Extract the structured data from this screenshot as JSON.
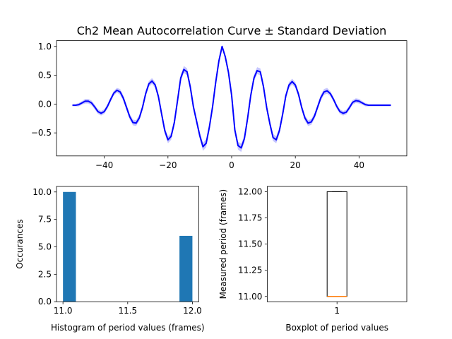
{
  "chart_data": [
    {
      "type": "line",
      "title": "Ch2 Mean Autocorrelation Curve ± Standard Deviation",
      "xlabel": "",
      "ylabel": "",
      "xlim": [
        -55,
        55
      ],
      "ylim": [
        -0.9,
        1.1
      ],
      "xticks": [
        -40,
        -20,
        0,
        20,
        40
      ],
      "xtick_labels": [
        "−40",
        "−20",
        "0",
        "20",
        "40"
      ],
      "yticks": [
        -0.5,
        0.0,
        0.5,
        1.0
      ],
      "ytick_labels": [
        "−0.5",
        "0.0",
        "0.5",
        "1.0"
      ],
      "grid": false,
      "line_color": "#0000ff",
      "band_color": "#8080ff",
      "series": [
        {
          "x": [
            -50,
            -49,
            -48,
            -47,
            -46,
            -45,
            -44,
            -43,
            -42,
            -41,
            -40,
            -39,
            -38,
            -37,
            -36,
            -35,
            -34,
            -33,
            -32,
            -31,
            -30,
            -29,
            -28,
            -27,
            -26,
            -25,
            -24,
            -23,
            -22,
            -21,
            -20,
            -19,
            -18,
            -17,
            -16,
            -15,
            -14,
            -13,
            -12,
            -11,
            -10,
            -9,
            -8,
            -7,
            -6,
            -5,
            -4,
            -3,
            -2,
            -1,
            0,
            1,
            2,
            3,
            4,
            5,
            6,
            7,
            8,
            9,
            10,
            11,
            12,
            13,
            14,
            15,
            16,
            17,
            18,
            19,
            20,
            21,
            22,
            23,
            24,
            25,
            26,
            27,
            28,
            29,
            30,
            31,
            32,
            33,
            34,
            35,
            36,
            37,
            38,
            39,
            40,
            41,
            42,
            43,
            44,
            45,
            46,
            47,
            48,
            49,
            50
          ],
          "mean": [
            -0.02,
            -0.02,
            -0.01,
            0.02,
            0.05,
            0.05,
            0.02,
            -0.05,
            -0.13,
            -0.16,
            -0.13,
            -0.04,
            0.08,
            0.19,
            0.24,
            0.21,
            0.1,
            -0.06,
            -0.22,
            -0.32,
            -0.33,
            -0.24,
            -0.06,
            0.18,
            0.35,
            0.4,
            0.33,
            0.13,
            -0.17,
            -0.46,
            -0.62,
            -0.56,
            -0.32,
            0.06,
            0.45,
            0.6,
            0.56,
            0.3,
            -0.05,
            -0.3,
            -0.55,
            -0.74,
            -0.68,
            -0.4,
            -0.05,
            0.38,
            0.75,
            1.0,
            0.82,
            0.55,
            0.15,
            -0.45,
            -0.72,
            -0.76,
            -0.6,
            -0.25,
            0.15,
            0.45,
            0.58,
            0.56,
            0.3,
            -0.06,
            -0.34,
            -0.58,
            -0.62,
            -0.46,
            -0.18,
            0.14,
            0.33,
            0.39,
            0.33,
            0.17,
            -0.06,
            -0.24,
            -0.33,
            -0.31,
            -0.21,
            -0.05,
            0.11,
            0.21,
            0.23,
            0.18,
            0.08,
            -0.04,
            -0.13,
            -0.16,
            -0.14,
            -0.06,
            0.03,
            0.06,
            0.05,
            0.02,
            -0.01,
            -0.02,
            -0.02,
            -0.02,
            -0.02,
            -0.02,
            -0.02,
            -0.02,
            -0.02
          ],
          "std": [
            0.02,
            0.02,
            0.03,
            0.03,
            0.04,
            0.04,
            0.04,
            0.04,
            0.04,
            0.04,
            0.04,
            0.04,
            0.04,
            0.04,
            0.04,
            0.05,
            0.05,
            0.05,
            0.05,
            0.05,
            0.05,
            0.05,
            0.05,
            0.05,
            0.05,
            0.05,
            0.05,
            0.05,
            0.05,
            0.06,
            0.06,
            0.06,
            0.06,
            0.06,
            0.06,
            0.06,
            0.06,
            0.06,
            0.06,
            0.06,
            0.06,
            0.07,
            0.07,
            0.06,
            0.05,
            0.04,
            0.03,
            0.01,
            0.03,
            0.04,
            0.05,
            0.06,
            0.07,
            0.07,
            0.06,
            0.06,
            0.06,
            0.06,
            0.06,
            0.06,
            0.06,
            0.06,
            0.06,
            0.06,
            0.06,
            0.06,
            0.06,
            0.05,
            0.05,
            0.05,
            0.05,
            0.05,
            0.05,
            0.05,
            0.05,
            0.05,
            0.05,
            0.05,
            0.05,
            0.05,
            0.05,
            0.04,
            0.04,
            0.04,
            0.04,
            0.04,
            0.04,
            0.04,
            0.04,
            0.04,
            0.04,
            0.03,
            0.03,
            0.02,
            0.02,
            0.02,
            0.02,
            0.02,
            0.02,
            0.02,
            0.02
          ]
        }
      ]
    },
    {
      "type": "bar",
      "title": "",
      "xlabel": "Histogram of period values (frames)",
      "ylabel": "Occurances",
      "xlim": [
        10.95,
        12.05
      ],
      "ylim": [
        0,
        10.5
      ],
      "xticks": [
        11.0,
        11.5,
        12.0
      ],
      "xtick_labels": [
        "11.0",
        "11.5",
        "12.0"
      ],
      "yticks": [
        0.0,
        2.5,
        5.0,
        7.5,
        10.0
      ],
      "ytick_labels": [
        "0.0",
        "2.5",
        "5.0",
        "7.5",
        "10.0"
      ],
      "bar_color": "#1f77b4",
      "bins": [
        {
          "from": 11.0,
          "to": 11.1,
          "count": 10
        },
        {
          "from": 11.9,
          "to": 12.0,
          "count": 6
        }
      ]
    },
    {
      "type": "boxplot",
      "title": "",
      "xlabel": "Boxplot of period values",
      "ylabel": "Measured period (frames)",
      "ylim": [
        10.95,
        12.05
      ],
      "xticks": [
        1
      ],
      "xtick_labels": [
        "1"
      ],
      "yticks": [
        11.0,
        11.25,
        11.5,
        11.75,
        12.0
      ],
      "ytick_labels": [
        "11.00",
        "11.25",
        "11.50",
        "11.75",
        "12.00"
      ],
      "median_color": "#ff7f0e",
      "box": {
        "whislo": 11.0,
        "q1": 11.0,
        "med": 11.0,
        "q3": 12.0,
        "whishi": 12.0
      }
    }
  ]
}
